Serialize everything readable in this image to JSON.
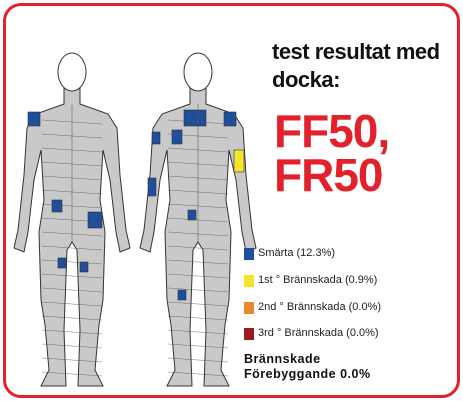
{
  "header": {
    "title": "test resultat med docka:",
    "codes": [
      "FF50,",
      "FR50"
    ]
  },
  "legend": [
    {
      "label": "Smärta (12.3%)",
      "color": "#1f4e9c"
    },
    {
      "label": "1st ° Brännskada (0.9%)",
      "color": "#f2e52b"
    },
    {
      "label": "2nd ° Brännskada (0.0%)",
      "color": "#e8892a"
    },
    {
      "label": "3rd ° Brännskada (0.0%)",
      "color": "#9b1b1f"
    }
  ],
  "footer": {
    "lines": [
      "Brännskade",
      "Förebyggande  0.0%"
    ]
  }
}
